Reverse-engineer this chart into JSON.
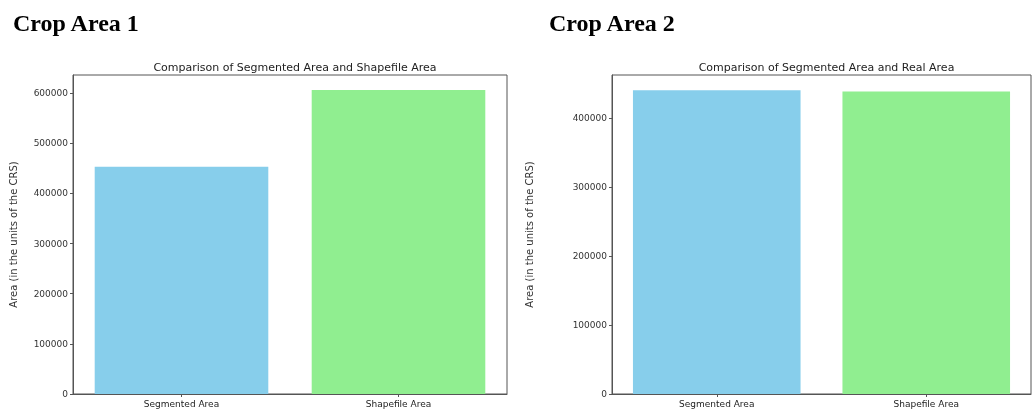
{
  "chart_data": [
    {
      "type": "bar",
      "title": "Crop Area 1",
      "subtitle": "Comparison of Segmented Area and Shapefile Area",
      "ylabel": "Area (in the units of the CRS)",
      "categories": [
        "Segmented Area",
        "Shapefile Area"
      ],
      "values": [
        453000,
        606000
      ],
      "colors": [
        "#87ceeb",
        "#90ee90"
      ],
      "ylim": [
        0,
        636000
      ],
      "yticks": [
        0,
        100000,
        200000,
        300000,
        400000,
        500000,
        600000
      ],
      "grid": false
    },
    {
      "type": "bar",
      "title": "Crop Area 2",
      "subtitle": "Comparison of Segmented Area and Real Area",
      "ylabel": "Area (in the units of the CRS)",
      "categories": [
        "Segmented Area",
        "Shapefile Area"
      ],
      "values": [
        440000,
        438000
      ],
      "colors": [
        "#87ceeb",
        "#90ee90"
      ],
      "ylim": [
        0,
        462000
      ],
      "yticks": [
        0,
        100000,
        200000,
        300000,
        400000
      ],
      "grid": false
    }
  ]
}
